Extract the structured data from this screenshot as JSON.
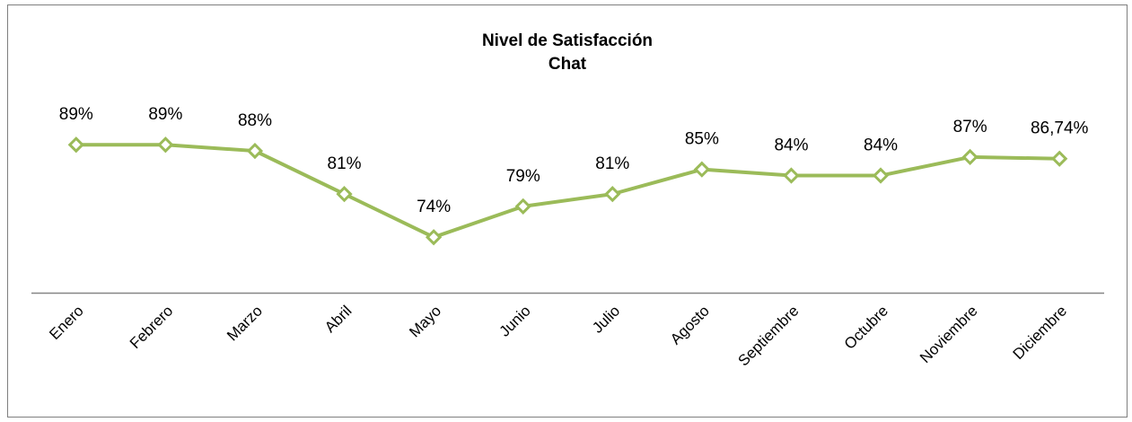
{
  "chart_data": {
    "type": "line",
    "title": "Nivel de Satisfacción",
    "subtitle": "Chat",
    "categories": [
      "Enero",
      "Febrero",
      "Marzo",
      "Abril",
      "Mayo",
      "Junio",
      "Julio",
      "Agosto",
      "Septiembre",
      "Octubre",
      "Noviembre",
      "Diciembre"
    ],
    "values": [
      89,
      89,
      88,
      81,
      74,
      79,
      81,
      85,
      84,
      84,
      87,
      86.74
    ],
    "value_labels": [
      "89%",
      "89%",
      "88%",
      "81%",
      "74%",
      "79%",
      "81%",
      "85%",
      "84%",
      "84%",
      "87%",
      "86,74%"
    ],
    "color": "#9bbb59",
    "ylim": [
      65,
      95
    ]
  }
}
